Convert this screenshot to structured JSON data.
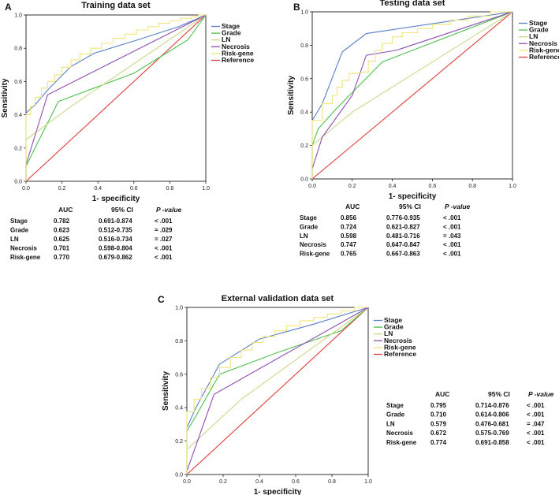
{
  "chart_data": [
    {
      "panel": "A",
      "type": "line",
      "title": "Training data set",
      "xlabel": "1- specificity",
      "ylabel": "Sensitivity",
      "xlim": [
        0,
        1
      ],
      "ylim": [
        0,
        1
      ],
      "ticks": [
        "0.0",
        "0.2",
        "0.4",
        "0.6",
        "0.8",
        "1.0"
      ],
      "series": [
        {
          "name": "Stage",
          "color": "#5a7fc7",
          "points": [
            [
              0,
              0
            ],
            [
              0,
              0.41
            ],
            [
              0.05,
              0.46
            ],
            [
              0.13,
              0.56
            ],
            [
              0.25,
              0.69
            ],
            [
              0.38,
              0.77
            ],
            [
              0.62,
              0.85
            ],
            [
              0.85,
              0.93
            ],
            [
              1,
              1
            ]
          ]
        },
        {
          "name": "Grade",
          "color": "#4fc04f",
          "points": [
            [
              0,
              0
            ],
            [
              0,
              0.09
            ],
            [
              0.05,
              0.2
            ],
            [
              0.18,
              0.48
            ],
            [
              0.6,
              0.65
            ],
            [
              0.9,
              0.85
            ],
            [
              1,
              1
            ]
          ]
        },
        {
          "name": "LN",
          "color": "#c9d98a",
          "points": [
            [
              0,
              0
            ],
            [
              0,
              0.25
            ],
            [
              0.25,
              0.45
            ],
            [
              1,
              1
            ]
          ]
        },
        {
          "name": "Necrosis",
          "color": "#8f4fb3",
          "points": [
            [
              0,
              0
            ],
            [
              0,
              0.1
            ],
            [
              0.12,
              0.52
            ],
            [
              1,
              1
            ]
          ]
        },
        {
          "name": "Risk-gene",
          "color": "#f2e57a",
          "points": [
            [
              0,
              0
            ],
            [
              0,
              0.35
            ],
            [
              0.05,
              0.45
            ],
            [
              0.12,
              0.56
            ],
            [
              0.2,
              0.64
            ],
            [
              0.3,
              0.73
            ],
            [
              0.42,
              0.8
            ],
            [
              0.55,
              0.86
            ],
            [
              0.68,
              0.91
            ],
            [
              0.8,
              0.95
            ],
            [
              0.92,
              0.98
            ],
            [
              1,
              1
            ]
          ]
        },
        {
          "name": "Reference",
          "color": "#e03a3a",
          "points": [
            [
              0,
              0
            ],
            [
              1,
              1
            ]
          ]
        }
      ],
      "table": {
        "headers": [
          "AUC",
          "95% CI",
          "P -value"
        ],
        "rows": [
          [
            "Stage",
            "0.782",
            "0.691-0.874",
            "< .001"
          ],
          [
            "Grade",
            "0.623",
            "0.512-0.735",
            "= .029"
          ],
          [
            "LN",
            "0.625",
            "0.516-0.734",
            "= .027"
          ],
          [
            "Necrosis",
            "0.701",
            "0.598-0.804",
            "< .001"
          ],
          [
            "Risk-gene",
            "0.770",
            "0.679-0.862",
            "< .001"
          ]
        ]
      }
    },
    {
      "panel": "B",
      "type": "line",
      "title": "Testing data set",
      "xlabel": "1- specificity",
      "ylabel": "Sensitivity",
      "xlim": [
        0,
        1
      ],
      "ylim": [
        0,
        1
      ],
      "ticks": [
        "0.0",
        "0.2",
        "0.4",
        "0.6",
        "0.8",
        "1.0"
      ],
      "series": [
        {
          "name": "Stage",
          "color": "#5a7fc7",
          "points": [
            [
              0,
              0
            ],
            [
              0,
              0.35
            ],
            [
              0.05,
              0.45
            ],
            [
              0.15,
              0.76
            ],
            [
              0.27,
              0.87
            ],
            [
              1,
              1
            ]
          ]
        },
        {
          "name": "Grade",
          "color": "#4fc04f",
          "points": [
            [
              0,
              0
            ],
            [
              0,
              0.2
            ],
            [
              0.03,
              0.3
            ],
            [
              0.12,
              0.42
            ],
            [
              0.35,
              0.7
            ],
            [
              1,
              1
            ]
          ]
        },
        {
          "name": "LN",
          "color": "#c9d98a",
          "points": [
            [
              0,
              0
            ],
            [
              0,
              0.2
            ],
            [
              0.2,
              0.4
            ],
            [
              1,
              1
            ]
          ]
        },
        {
          "name": "Necrosis",
          "color": "#8f4fb3",
          "points": [
            [
              0,
              0
            ],
            [
              0,
              0.06
            ],
            [
              0.05,
              0.25
            ],
            [
              0.2,
              0.5
            ],
            [
              0.27,
              0.74
            ],
            [
              0.42,
              0.77
            ],
            [
              1,
              1
            ]
          ]
        },
        {
          "name": "Risk-gene",
          "color": "#f2e57a",
          "points": [
            [
              0,
              0
            ],
            [
              0,
              0.25
            ],
            [
              0.1,
              0.45
            ],
            [
              0.15,
              0.55
            ],
            [
              0.22,
              0.63
            ],
            [
              0.28,
              0.64
            ],
            [
              0.35,
              0.77
            ],
            [
              0.45,
              0.85
            ],
            [
              0.6,
              0.9
            ],
            [
              0.78,
              0.95
            ],
            [
              1,
              1
            ]
          ]
        },
        {
          "name": "Reference",
          "color": "#e03a3a",
          "points": [
            [
              0,
              0
            ],
            [
              1,
              1
            ]
          ]
        }
      ],
      "table": {
        "headers": [
          "AUC",
          "95% CI",
          "P -value"
        ],
        "rows": [
          [
            "Stage",
            "0.856",
            "0.776-0.935",
            "< .001"
          ],
          [
            "Grade",
            "0.724",
            "0.621-0.827",
            "< .001"
          ],
          [
            "LN",
            "0.598",
            "0.481-0.716",
            "= .043"
          ],
          [
            "Necrosis",
            "0.747",
            "0.647-0.847",
            "< .001"
          ],
          [
            "Risk-gene",
            "0.765",
            "0.667-0.863",
            "< .001"
          ]
        ]
      }
    },
    {
      "panel": "C",
      "type": "line",
      "title": "External validation data set",
      "xlabel": "1- specificity",
      "ylabel": "Sensitivity",
      "xlim": [
        0,
        1
      ],
      "ylim": [
        0,
        1
      ],
      "ticks": [
        "0.0",
        "0.2",
        "0.4",
        "0.6",
        "0.8",
        "1.0"
      ],
      "series": [
        {
          "name": "Stage",
          "color": "#5a7fc7",
          "points": [
            [
              0,
              0
            ],
            [
              0,
              0.28
            ],
            [
              0.05,
              0.4
            ],
            [
              0.18,
              0.66
            ],
            [
              0.4,
              0.81
            ],
            [
              0.7,
              0.9
            ],
            [
              1,
              1
            ]
          ]
        },
        {
          "name": "Grade",
          "color": "#4fc04f",
          "points": [
            [
              0,
              0
            ],
            [
              0,
              0.26
            ],
            [
              0.05,
              0.35
            ],
            [
              0.18,
              0.6
            ],
            [
              0.5,
              0.73
            ],
            [
              0.85,
              0.86
            ],
            [
              1,
              1
            ]
          ]
        },
        {
          "name": "LN",
          "color": "#c9d98a",
          "points": [
            [
              0,
              0
            ],
            [
              0,
              0.15
            ],
            [
              0.3,
              0.45
            ],
            [
              1,
              1
            ]
          ]
        },
        {
          "name": "Necrosis",
          "color": "#8f4fb3",
          "points": [
            [
              0,
              0
            ],
            [
              0,
              0.02
            ],
            [
              0.15,
              0.48
            ],
            [
              1,
              1
            ]
          ]
        },
        {
          "name": "Risk-gene",
          "color": "#f2e57a",
          "points": [
            [
              0,
              0
            ],
            [
              0,
              0.3
            ],
            [
              0.08,
              0.45
            ],
            [
              0.18,
              0.58
            ],
            [
              0.3,
              0.7
            ],
            [
              0.42,
              0.79
            ],
            [
              0.55,
              0.86
            ],
            [
              0.7,
              0.92
            ],
            [
              0.85,
              0.96
            ],
            [
              1,
              1
            ]
          ]
        },
        {
          "name": "Reference",
          "color": "#e03a3a",
          "points": [
            [
              0,
              0
            ],
            [
              1,
              1
            ]
          ]
        }
      ],
      "table": {
        "headers": [
          "AUC",
          "95% CI",
          "P -value"
        ],
        "rows": [
          [
            "Stage",
            "0.795",
            "0.714-0.876",
            "< .001"
          ],
          [
            "Grade",
            "0.710",
            "0.614-0.806",
            "< .001"
          ],
          [
            "LN",
            "0.579",
            "0.476-0.681",
            "= .047"
          ],
          [
            "Necrosis",
            "0.672",
            "0.575-0.769",
            "< .001"
          ],
          [
            "Risk-gene",
            "0.774",
            "0.691-0.858",
            "< .001"
          ]
        ]
      }
    }
  ]
}
